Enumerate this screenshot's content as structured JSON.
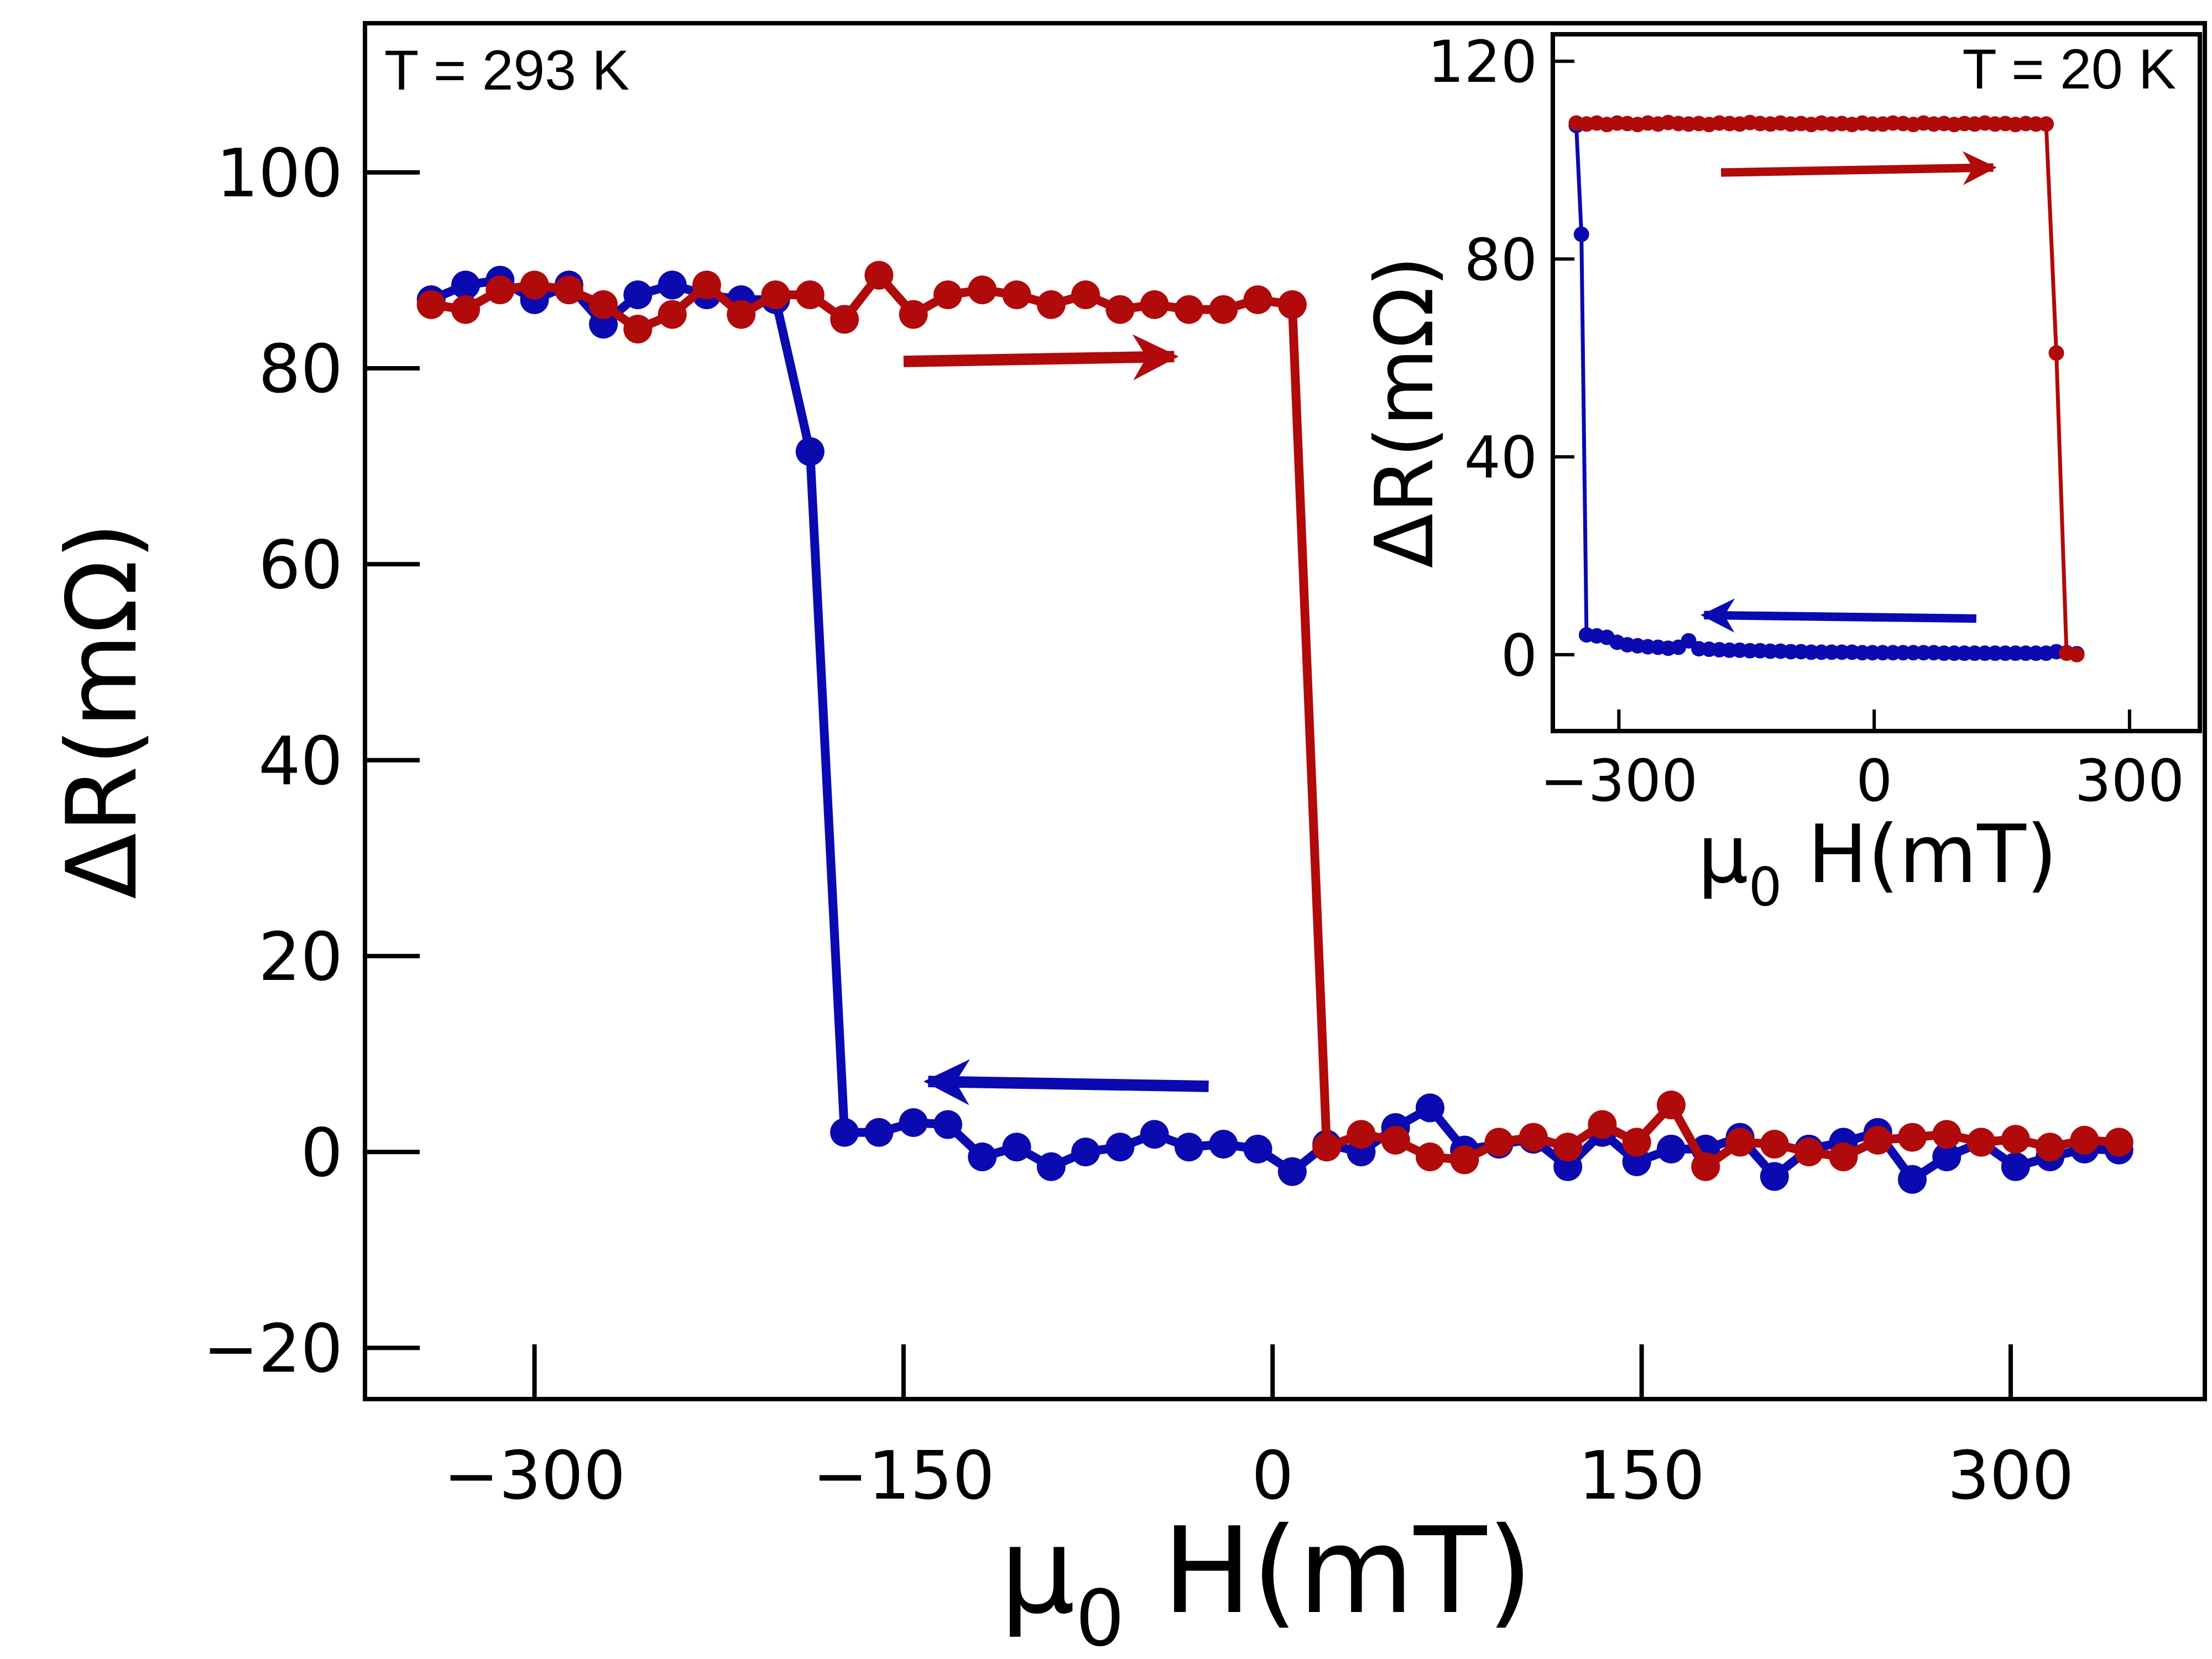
{
  "chart_data": [
    {
      "type": "line",
      "annotation": "T = 293 K",
      "xlabel": "μ",
      "xlabel_sub": "0",
      "xlabel_rest": " H(mT)",
      "ylabel": "ΔR(mΩ)",
      "xlim": [
        -368,
        378
      ],
      "ylim": [
        -25,
        115
      ],
      "xticks": [
        -300,
        -150,
        0,
        150,
        300
      ],
      "xtick_labels": [
        "−300",
        "−150",
        "0",
        "150",
        "300"
      ],
      "yticks": [
        -20,
        0,
        20,
        40,
        60,
        80,
        100
      ],
      "ytick_labels": [
        "−20",
        "0",
        "20",
        "40",
        "60",
        "80",
        "100"
      ],
      "grid": false,
      "colors": {
        "blue": "#0a0ab0",
        "red": "#b00a0a"
      },
      "arrows": [
        {
          "color": "red",
          "from": [
            -150,
            80.7
          ],
          "to": [
            -40,
            81.2
          ]
        },
        {
          "color": "blue",
          "from": [
            -26,
            6.7
          ],
          "to": [
            -140,
            7.2
          ]
        }
      ],
      "series": [
        {
          "color": "blue",
          "x": [
            -342,
            -328,
            -314,
            -300,
            -286,
            -272,
            -258,
            -244,
            -230,
            -216,
            -202,
            -188,
            -174,
            -160,
            -146,
            -132,
            -118,
            -104,
            -90,
            -76,
            -62,
            -48,
            -34,
            -20,
            -6,
            8,
            22,
            36,
            50,
            64,
            78,
            92,
            106,
            120,
            134,
            148,
            162,
            176,
            190,
            204,
            218,
            232,
            246,
            260,
            274,
            288,
            302,
            316,
            330,
            344
          ],
          "y": [
            87,
            88.5,
            89,
            87,
            88.5,
            84.5,
            87.5,
            88.5,
            87.5,
            87,
            87,
            71.5,
            2,
            2,
            3,
            2.8,
            -0.5,
            0.5,
            -1.5,
            0,
            0.5,
            1.8,
            0.5,
            0.8,
            0.3,
            -2,
            0.8,
            0,
            2.5,
            4.5,
            0.2,
            0.8,
            1.3,
            -1.5,
            2,
            -1,
            0.3,
            0.3,
            1.5,
            -2.5,
            0.3,
            1,
            2,
            -2.8,
            -0.5,
            1,
            -1.5,
            -0.5,
            0.3,
            0.2
          ]
        },
        {
          "color": "red",
          "x": [
            -342,
            -328,
            -314,
            -300,
            -286,
            -272,
            -258,
            -244,
            -230,
            -216,
            -202,
            -188,
            -174,
            -160,
            -146,
            -132,
            -118,
            -104,
            -90,
            -76,
            -62,
            -48,
            -34,
            -20,
            -6,
            8,
            22,
            36,
            50,
            64,
            78,
            92,
            106,
            120,
            134,
            148,
            162,
            176,
            190,
            204,
            218,
            232,
            246,
            260,
            274,
            288,
            302,
            316,
            330,
            344
          ],
          "y": [
            86.5,
            86,
            88,
            88.5,
            88,
            86.5,
            84,
            85.5,
            88.5,
            85.5,
            87.5,
            87.5,
            85,
            89.5,
            85.5,
            87.5,
            88,
            87.5,
            86.5,
            87.5,
            86,
            86.5,
            86,
            86,
            87,
            86.5,
            0.5,
            1.8,
            1.2,
            -0.5,
            -0.8,
            1,
            1.5,
            0.5,
            2.8,
            1,
            4.8,
            -1.5,
            1,
            0.8,
            0,
            -0.5,
            1.2,
            1.5,
            1.8,
            1,
            1.3,
            0.5,
            1.2,
            1
          ]
        }
      ]
    },
    {
      "type": "line",
      "annotation": "T = 20 K",
      "xlabel": "μ",
      "xlabel_sub": "0",
      "xlabel_rest": " H(mT)",
      "ylabel": "ΔR(mΩ)",
      "xlim": [
        -375,
        380
      ],
      "ylim": [
        -15,
        125
      ],
      "xticks": [
        -300,
        0,
        300
      ],
      "xtick_labels": [
        "−300",
        "0",
        "300"
      ],
      "yticks": [
        0,
        40,
        80,
        120
      ],
      "ytick_labels": [
        "0",
        "40",
        "80",
        "120"
      ],
      "grid": false,
      "arrows": [
        {
          "color": "red",
          "from": [
            -180,
            97.5
          ],
          "to": [
            140,
            98.5
          ]
        },
        {
          "color": "blue",
          "from": [
            120,
            7.3
          ],
          "to": [
            -200,
            8
          ]
        }
      ],
      "series": [
        {
          "color": "blue",
          "x": [
            -350,
            -344,
            -338,
            -326,
            -314,
            -302,
            -290,
            -278,
            -266,
            -254,
            -242,
            -230,
            -218,
            -206,
            -194,
            -182,
            -170,
            -158,
            -146,
            -134,
            -122,
            -110,
            -98,
            -86,
            -74,
            -62,
            -50,
            -38,
            -26,
            -14,
            -2,
            10,
            22,
            34,
            46,
            58,
            70,
            82,
            94,
            106,
            118,
            130,
            142,
            154,
            166,
            178,
            190,
            202,
            214,
            226,
            238
          ],
          "y": [
            107,
            85,
            4,
            3.8,
            3.5,
            2.5,
            2,
            1.8,
            1.6,
            1.5,
            1.3,
            1.5,
            2.8,
            1.2,
            1.1,
            1,
            0.9,
            0.9,
            0.8,
            0.8,
            0.7,
            0.7,
            0.6,
            0.6,
            0.5,
            0.5,
            0.5,
            0.5,
            0.5,
            0.4,
            0.4,
            0.4,
            0.4,
            0.4,
            0.4,
            0.4,
            0.4,
            0.3,
            0.3,
            0.3,
            0.3,
            0.3,
            0.3,
            0.3,
            0.3,
            0.3,
            0.3,
            0.3,
            0.6,
            0.4,
            0.2
          ]
        },
        {
          "color": "red",
          "x": [
            -350,
            -338,
            -326,
            -314,
            -302,
            -290,
            -278,
            -266,
            -254,
            -242,
            -230,
            -218,
            -206,
            -194,
            -182,
            -170,
            -158,
            -146,
            -134,
            -122,
            -110,
            -98,
            -86,
            -74,
            -62,
            -50,
            -38,
            -26,
            -14,
            -2,
            10,
            22,
            34,
            46,
            58,
            70,
            82,
            94,
            106,
            118,
            130,
            142,
            154,
            166,
            178,
            190,
            202,
            214,
            226,
            238
          ],
          "y": [
            107.5,
            107.3,
            107.5,
            107.2,
            107.5,
            107.4,
            107.2,
            107.5,
            107.3,
            107.6,
            107.4,
            107.3,
            107.4,
            107.2,
            107.5,
            107.4,
            107.3,
            107.6,
            107.4,
            107.3,
            107.5,
            107.3,
            107.4,
            107.2,
            107.5,
            107.3,
            107.4,
            107.2,
            107.5,
            107.3,
            107.3,
            107.5,
            107.4,
            107.2,
            107.5,
            107.3,
            107.4,
            107.2,
            107.4,
            107.3,
            107.5,
            107.3,
            107.4,
            107.2,
            107.4,
            107.3,
            107.3,
            61,
            0.3,
            0
          ]
        }
      ]
    }
  ]
}
